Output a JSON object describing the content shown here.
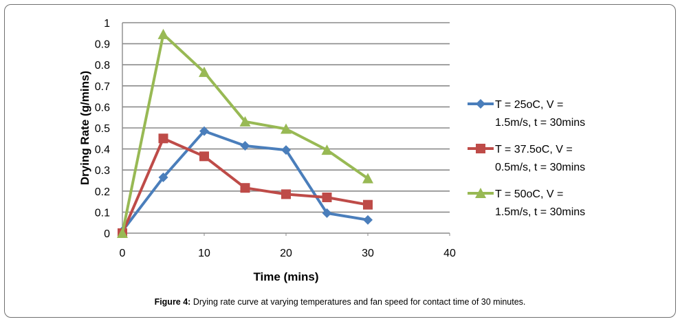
{
  "caption": {
    "label": "Figure 4:",
    "text": " Drying rate curve at varying temperatures and fan speed for contact time of 30 minutes."
  },
  "chart_data": {
    "type": "line",
    "xlabel": "Time (mins)",
    "ylabel": "Drying Rate (g/mins)",
    "xlim": [
      0,
      40
    ],
    "ylim": [
      0,
      1
    ],
    "x_ticks": [
      "0",
      "10",
      "20",
      "30",
      "40"
    ],
    "y_ticks": [
      "0",
      "0.1",
      "0.2",
      "0.3",
      "0.4",
      "0.5",
      "0.6",
      "0.7",
      "0.8",
      "0.9",
      "1"
    ],
    "grid": "horizontal",
    "legend_position": "right",
    "x": [
      0,
      5,
      10,
      15,
      20,
      25,
      30
    ],
    "series": [
      {
        "name": "T = 25oC, V = 1.5m/s, t = 30mins",
        "name_lines": [
          "T = 25oC, V =",
          "1.5m/s, t = 30mins"
        ],
        "marker": "diamond",
        "color": "#4a7ebb",
        "values": [
          0.01,
          0.265,
          0.485,
          0.415,
          0.395,
          0.095,
          0.063
        ]
      },
      {
        "name": "T = 37.5oC, V = 0.5m/s, t = 30mins",
        "name_lines": [
          "T = 37.5oC, V =",
          "0.5m/s, t = 30mins"
        ],
        "marker": "square",
        "color": "#be4b48",
        "values": [
          0.0,
          0.45,
          0.365,
          0.215,
          0.185,
          0.17,
          0.135
        ]
      },
      {
        "name": "T = 50oC, V = 1.5m/s, t = 30mins",
        "name_lines": [
          "T = 50oC, V =",
          "1.5m/s, t = 30mins"
        ],
        "marker": "triangle",
        "color": "#98b954",
        "values": [
          0.0,
          0.945,
          0.765,
          0.53,
          0.495,
          0.395,
          0.26
        ]
      }
    ]
  }
}
